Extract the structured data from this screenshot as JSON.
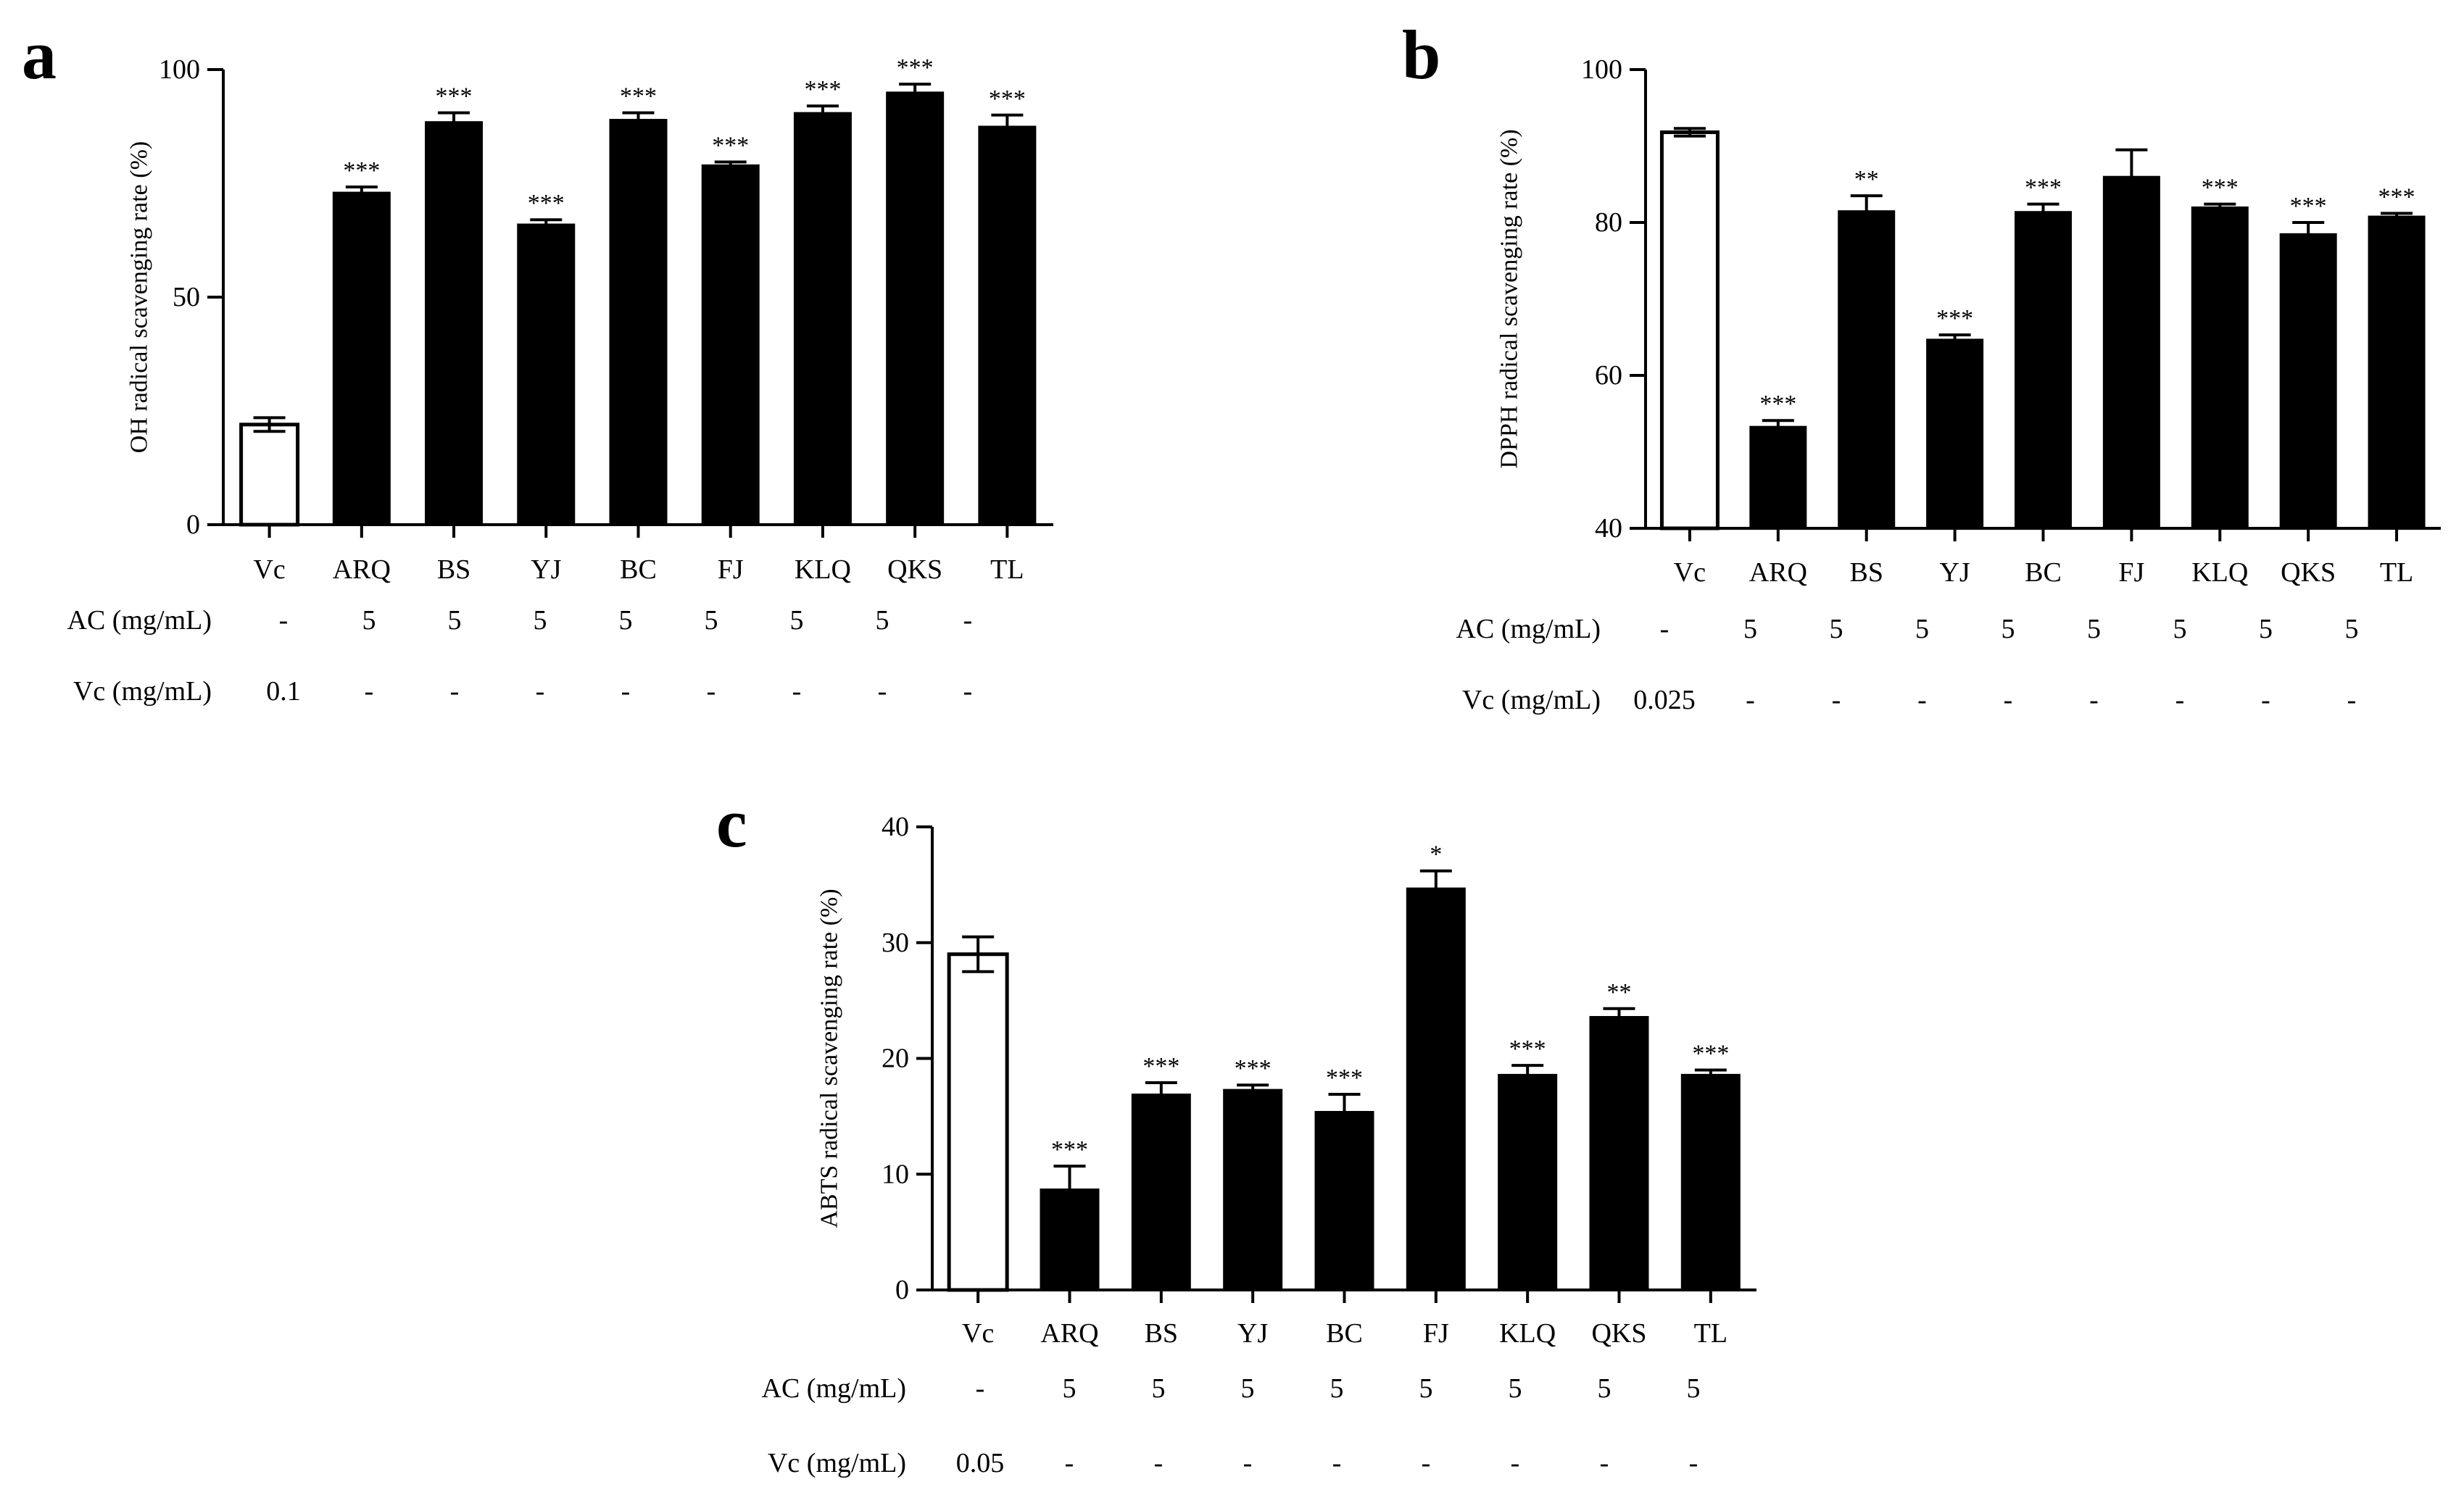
{
  "chart_data": [
    {
      "panel_label": "a",
      "type": "bar",
      "ylabel": "OH radical scavenging rate (%)",
      "ylim": [
        0,
        100
      ],
      "yticks": [
        0,
        50,
        100
      ],
      "categories": [
        "Vc",
        "ARQ",
        "BS",
        "YJ",
        "BC",
        "FJ",
        "KLQ",
        "QKS",
        "TL"
      ],
      "values": [
        22,
        73,
        88.5,
        66,
        89,
        79,
        90.5,
        95,
        87.5
      ],
      "errors": [
        1.5,
        1.2,
        2,
        1,
        1.5,
        0.7,
        1.5,
        1.8,
        2.5
      ],
      "filled": [
        false,
        true,
        true,
        true,
        true,
        true,
        true,
        true,
        true
      ],
      "significance": [
        "",
        "***",
        "***",
        "***",
        "***",
        "***",
        "***",
        "***",
        "***"
      ],
      "conditions": [
        {
          "label": "AC (mg/mL)",
          "values": [
            "-",
            "5",
            "5",
            "5",
            "5",
            "5",
            "5",
            "5",
            "-"
          ]
        },
        {
          "label": "Vc  (mg/mL)",
          "values": [
            "0.1",
            "-",
            "-",
            "-",
            "-",
            "-",
            "-",
            "-",
            "-"
          ]
        }
      ]
    },
    {
      "panel_label": "b",
      "type": "bar",
      "ylabel": "DPPH radical scavenging rate (%)",
      "ylim": [
        40,
        100
      ],
      "yticks": [
        40,
        60,
        80,
        100
      ],
      "categories": [
        "Vc",
        "ARQ",
        "BS",
        "YJ",
        "BC",
        "FJ",
        "KLQ",
        "QKS",
        "TL"
      ],
      "values": [
        91.8,
        53.3,
        81.5,
        64.7,
        81.4,
        86,
        82,
        78.5,
        80.8
      ],
      "errors": [
        0.5,
        0.8,
        2,
        0.6,
        1,
        3.5,
        0.4,
        1.5,
        0.4
      ],
      "filled": [
        false,
        true,
        true,
        true,
        true,
        true,
        true,
        true,
        true
      ],
      "significance": [
        "",
        "***",
        "**",
        "***",
        "***",
        "",
        "***",
        "***",
        "***"
      ],
      "conditions": [
        {
          "label": "AC (mg/mL)",
          "values": [
            "-",
            "5",
            "5",
            "5",
            "5",
            "5",
            "5",
            "5",
            "5"
          ]
        },
        {
          "label": "Vc  (mg/mL)",
          "values": [
            "0.025",
            "-",
            "-",
            "-",
            "-",
            "-",
            "-",
            "-",
            "-"
          ]
        }
      ]
    },
    {
      "panel_label": "c",
      "type": "bar",
      "ylabel": "ABTS radical scavenging rate (%)",
      "ylim": [
        0,
        40
      ],
      "yticks": [
        0,
        10,
        20,
        30,
        40
      ],
      "categories": [
        "Vc",
        "ARQ",
        "BS",
        "YJ",
        "BC",
        "FJ",
        "KLQ",
        "QKS",
        "TL"
      ],
      "values": [
        29,
        8.7,
        16.9,
        17.3,
        15.4,
        34.7,
        18.6,
        23.6,
        18.6
      ],
      "errors": [
        1.5,
        2,
        1,
        0.4,
        1.5,
        1.5,
        0.8,
        0.7,
        0.4
      ],
      "filled": [
        false,
        true,
        true,
        true,
        true,
        true,
        true,
        true,
        true
      ],
      "significance": [
        "",
        "***",
        "***",
        "***",
        "***",
        "*",
        "***",
        "**",
        "***"
      ],
      "conditions": [
        {
          "label": "AC (mg/mL)",
          "values": [
            "-",
            "5",
            "5",
            "5",
            "5",
            "5",
            "5",
            "5",
            "5"
          ]
        },
        {
          "label": "Vc  (mg/mL)",
          "values": [
            "0.05",
            "-",
            "-",
            "-",
            "-",
            "-",
            "-",
            "-",
            "-"
          ]
        }
      ]
    }
  ]
}
